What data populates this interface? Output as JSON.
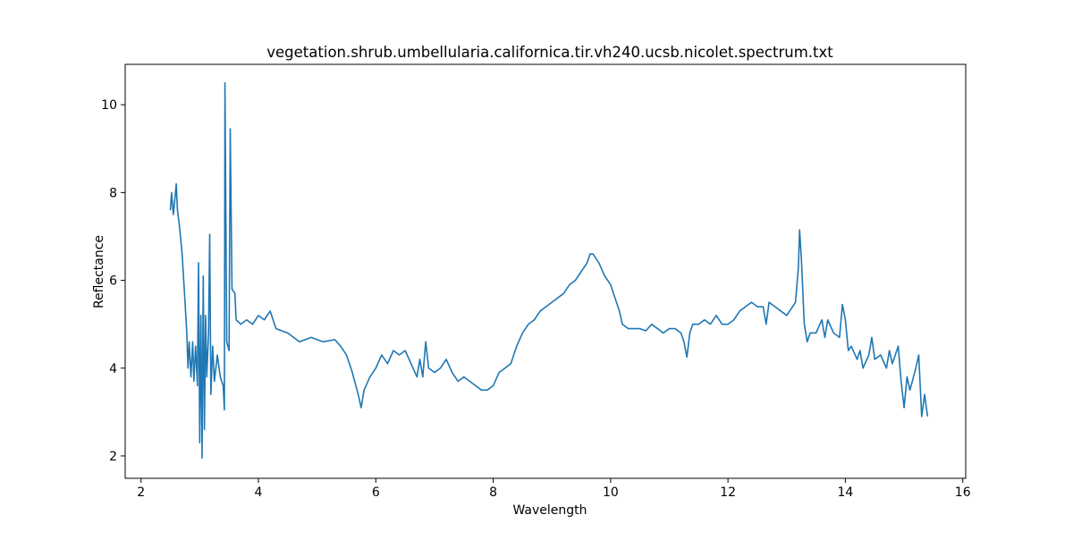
{
  "chart_data": {
    "type": "line",
    "title": "vegetation.shrub.umbellularia.californica.tir.vh240.ucsb.nicolet.spectrum.txt",
    "x_label": "Wavelength",
    "y_label": "Reflectance",
    "color": "#1f77b4",
    "x": [
      2.5,
      2.52,
      2.55,
      2.58,
      2.6,
      2.62,
      2.65,
      2.7,
      2.75,
      2.78,
      2.8,
      2.82,
      2.85,
      2.88,
      2.9,
      2.93,
      2.96,
      2.98,
      3.0,
      3.02,
      3.04,
      3.06,
      3.08,
      3.1,
      3.12,
      3.15,
      3.17,
      3.19,
      3.22,
      3.25,
      3.3,
      3.35,
      3.4,
      3.42,
      3.43,
      3.46,
      3.5,
      3.52,
      3.55,
      3.6,
      3.62,
      3.7,
      3.8,
      3.9,
      4.0,
      4.1,
      4.2,
      4.3,
      4.5,
      4.7,
      4.9,
      5.1,
      5.3,
      5.4,
      5.5,
      5.6,
      5.7,
      5.75,
      5.8,
      5.9,
      6.0,
      6.1,
      6.2,
      6.3,
      6.4,
      6.5,
      6.6,
      6.7,
      6.75,
      6.8,
      6.85,
      6.9,
      7.0,
      7.1,
      7.2,
      7.3,
      7.4,
      7.5,
      7.6,
      7.7,
      7.8,
      7.9,
      8.0,
      8.1,
      8.2,
      8.3,
      8.4,
      8.5,
      8.6,
      8.7,
      8.8,
      8.9,
      9.0,
      9.1,
      9.2,
      9.3,
      9.4,
      9.5,
      9.6,
      9.65,
      9.7,
      9.75,
      9.8,
      9.9,
      10.0,
      10.1,
      10.15,
      10.2,
      10.3,
      10.4,
      10.5,
      10.6,
      10.7,
      10.8,
      10.9,
      11.0,
      11.1,
      11.2,
      11.25,
      11.3,
      11.35,
      11.4,
      11.5,
      11.6,
      11.7,
      11.8,
      11.9,
      12.0,
      12.1,
      12.2,
      12.3,
      12.4,
      12.5,
      12.6,
      12.65,
      12.7,
      12.8,
      12.9,
      13.0,
      13.1,
      13.15,
      13.2,
      13.22,
      13.25,
      13.3,
      13.35,
      13.4,
      13.5,
      13.6,
      13.65,
      13.7,
      13.8,
      13.9,
      13.95,
      14.0,
      14.05,
      14.1,
      14.2,
      14.25,
      14.3,
      14.4,
      14.45,
      14.5,
      14.6,
      14.7,
      14.75,
      14.8,
      14.9,
      14.95,
      15.0,
      15.05,
      15.1,
      15.2,
      15.25,
      15.3,
      15.35,
      15.4
    ],
    "values": [
      7.6,
      8.0,
      7.5,
      7.9,
      8.2,
      7.6,
      7.3,
      6.6,
      5.5,
      4.8,
      4.0,
      4.6,
      3.8,
      4.6,
      3.7,
      4.5,
      3.6,
      6.4,
      2.3,
      5.2,
      1.95,
      6.1,
      2.6,
      5.2,
      3.8,
      4.8,
      7.05,
      3.4,
      4.5,
      3.7,
      4.3,
      3.8,
      3.6,
      3.05,
      10.5,
      4.6,
      4.4,
      9.45,
      5.8,
      5.7,
      5.1,
      5.0,
      5.1,
      5.0,
      5.2,
      5.1,
      5.3,
      4.9,
      4.8,
      4.6,
      4.7,
      4.6,
      4.65,
      4.5,
      4.3,
      3.9,
      3.4,
      3.1,
      3.5,
      3.8,
      4.0,
      4.3,
      4.1,
      4.4,
      4.3,
      4.4,
      4.1,
      3.8,
      4.2,
      3.8,
      4.6,
      4.0,
      3.9,
      4.0,
      4.2,
      3.9,
      3.7,
      3.8,
      3.7,
      3.6,
      3.5,
      3.5,
      3.6,
      3.9,
      4.0,
      4.1,
      4.5,
      4.8,
      5.0,
      5.1,
      5.3,
      5.4,
      5.5,
      5.6,
      5.7,
      5.9,
      6.0,
      6.2,
      6.4,
      6.6,
      6.6,
      6.5,
      6.4,
      6.1,
      5.9,
      5.5,
      5.3,
      5.0,
      4.9,
      4.9,
      4.9,
      4.85,
      5.0,
      4.9,
      4.8,
      4.9,
      4.9,
      4.8,
      4.6,
      4.25,
      4.8,
      5.0,
      5.0,
      5.1,
      5.0,
      5.2,
      5.0,
      5.0,
      5.1,
      5.3,
      5.4,
      5.5,
      5.4,
      5.4,
      5.0,
      5.5,
      5.4,
      5.3,
      5.2,
      5.4,
      5.5,
      6.3,
      7.15,
      6.5,
      5.0,
      4.6,
      4.8,
      4.8,
      5.1,
      4.7,
      5.1,
      4.8,
      4.7,
      5.45,
      5.1,
      4.4,
      4.5,
      4.2,
      4.4,
      4.0,
      4.3,
      4.7,
      4.2,
      4.3,
      4.0,
      4.4,
      4.1,
      4.5,
      3.7,
      3.1,
      3.8,
      3.5,
      4.0,
      4.3,
      2.9,
      3.4,
      2.9
    ],
    "xlim": [
      1.73,
      16.05
    ],
    "ylim": [
      1.49,
      10.92
    ],
    "xticks": [
      2,
      4,
      6,
      8,
      10,
      12,
      14,
      16
    ],
    "yticks": [
      2,
      4,
      6,
      8,
      10
    ]
  }
}
